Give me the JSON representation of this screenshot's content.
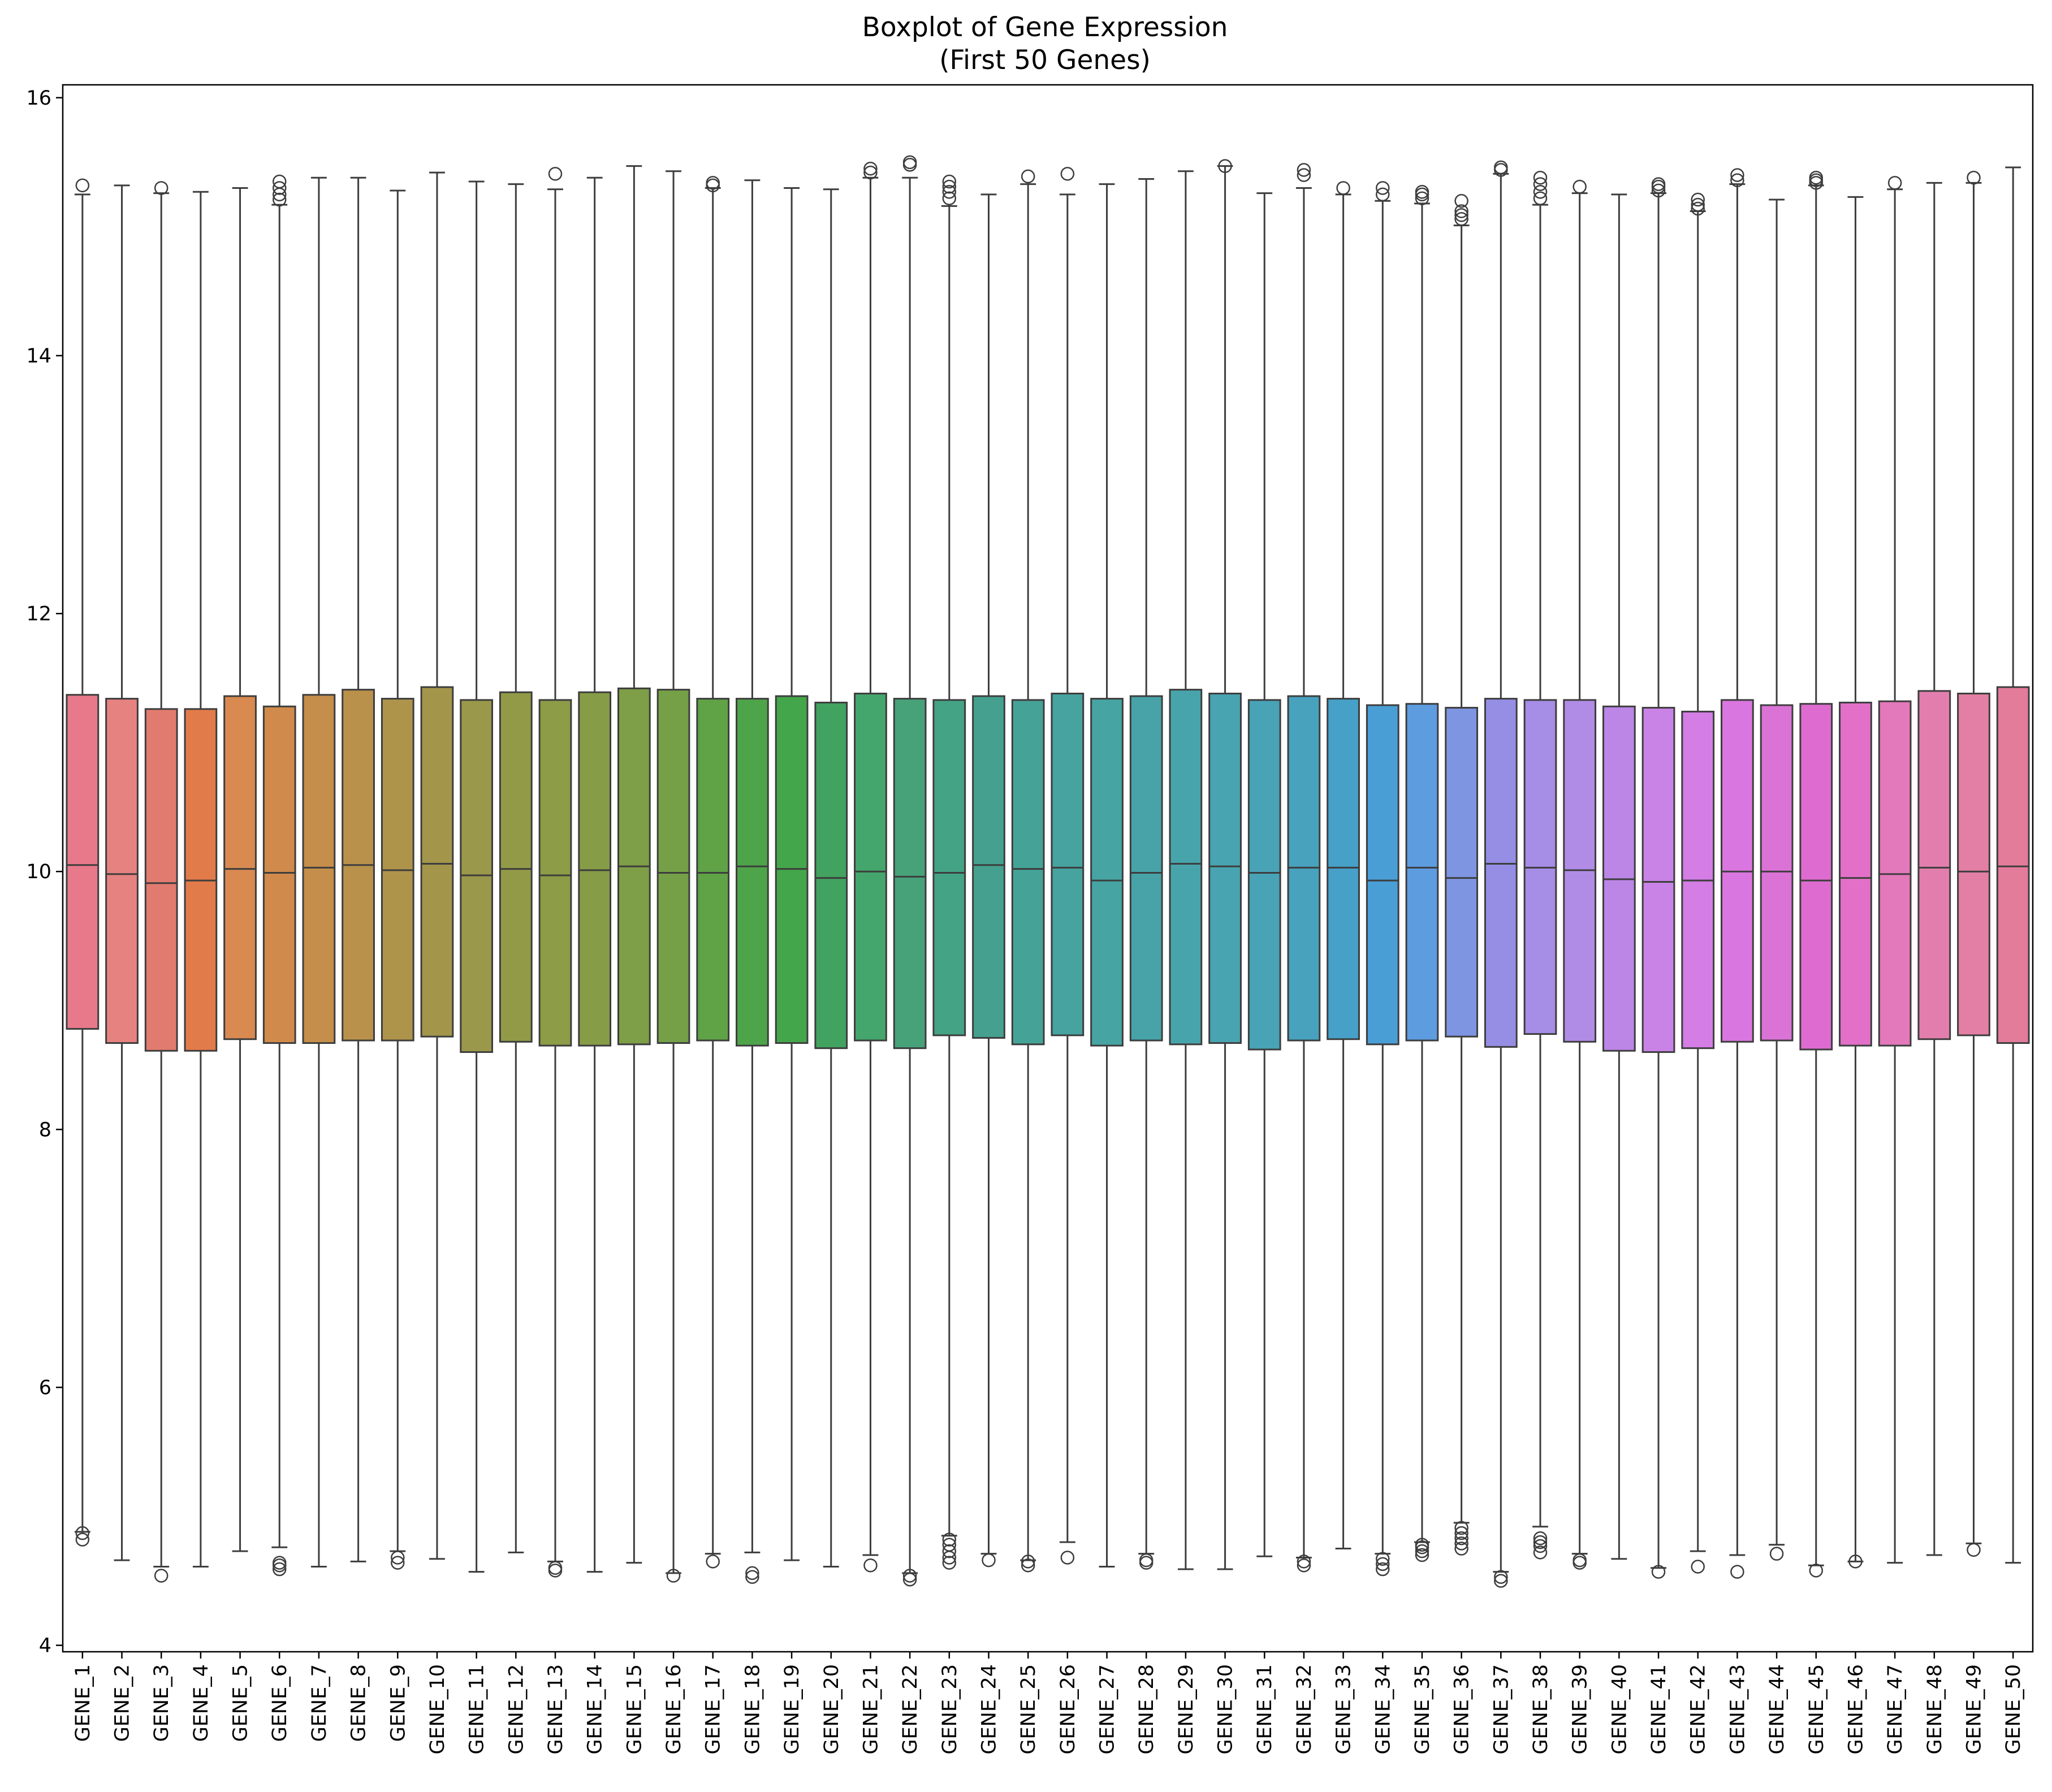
{
  "chart_data": {
    "type": "box",
    "title": "Boxplot of Gene Expression",
    "subtitle": "(First 50 Genes)",
    "xlabel": "",
    "ylabel": "",
    "ylim": [
      3.95,
      16.1
    ],
    "yticks": [
      4,
      6,
      8,
      10,
      12,
      14,
      16
    ],
    "grid": false,
    "legend": "none",
    "box_edge_color": "#3d3d3d",
    "categories": [
      "GENE_1",
      "GENE_2",
      "GENE_3",
      "GENE_4",
      "GENE_5",
      "GENE_6",
      "GENE_7",
      "GENE_8",
      "GENE_9",
      "GENE_10",
      "GENE_11",
      "GENE_12",
      "GENE_13",
      "GENE_14",
      "GENE_15",
      "GENE_16",
      "GENE_17",
      "GENE_18",
      "GENE_19",
      "GENE_20",
      "GENE_21",
      "GENE_22",
      "GENE_23",
      "GENE_24",
      "GENE_25",
      "GENE_26",
      "GENE_27",
      "GENE_28",
      "GENE_29",
      "GENE_30",
      "GENE_31",
      "GENE_32",
      "GENE_33",
      "GENE_34",
      "GENE_35",
      "GENE_36",
      "GENE_37",
      "GENE_38",
      "GENE_39",
      "GENE_40",
      "GENE_41",
      "GENE_42",
      "GENE_43",
      "GENE_44",
      "GENE_45",
      "GENE_46",
      "GENE_47",
      "GENE_48",
      "GENE_49",
      "GENE_50"
    ],
    "colors": [
      "#e8798a",
      "#e68280",
      "#e27b6f",
      "#e27b4a",
      "#d98a50",
      "#cf8a4c",
      "#c58e4b",
      "#b9914b",
      "#ae944b",
      "#a3964b",
      "#9a984a",
      "#929a48",
      "#8c9c47",
      "#869c47",
      "#7e9e47",
      "#75a047",
      "#60a246",
      "#4ea448",
      "#44a64b",
      "#42a25f",
      "#45a66d",
      "#47a27a",
      "#44a384",
      "#45a08f",
      "#45a297",
      "#46a39f",
      "#46a4a3",
      "#47a3a8",
      "#48a4ab",
      "#48a4b0",
      "#48a3b6",
      "#48a2be",
      "#46a0c8",
      "#4a9ed6",
      "#5e9ce0",
      "#7e95e2",
      "#958ee4",
      "#a68de6",
      "#b18ce6",
      "#bb86e6",
      "#c983e6",
      "#d37de5",
      "#da76e0",
      "#db73d6",
      "#de6cd0",
      "#e270c8",
      "#e378bb",
      "#e27eae",
      "#e37fa4",
      "#e37b9b"
    ],
    "series": [
      {
        "q1": 8.78,
        "median": 10.05,
        "q3": 11.37,
        "whisker_low": 4.88,
        "whisker_high": 15.25,
        "outliers": [
          4.82,
          4.87,
          15.32
        ]
      },
      {
        "q1": 8.67,
        "median": 9.98,
        "q3": 11.34,
        "whisker_low": 4.66,
        "whisker_high": 15.32,
        "outliers": []
      },
      {
        "q1": 8.61,
        "median": 9.91,
        "q3": 11.26,
        "whisker_low": 4.61,
        "whisker_high": 15.26,
        "outliers": [
          4.54,
          15.3
        ]
      },
      {
        "q1": 8.61,
        "median": 9.93,
        "q3": 11.26,
        "whisker_low": 4.61,
        "whisker_high": 15.27,
        "outliers": []
      },
      {
        "q1": 8.7,
        "median": 10.02,
        "q3": 11.36,
        "whisker_low": 4.73,
        "whisker_high": 15.3,
        "outliers": []
      },
      {
        "q1": 8.67,
        "median": 9.99,
        "q3": 11.28,
        "whisker_low": 4.76,
        "whisker_high": 15.17,
        "outliers": [
          4.59,
          4.62,
          4.64,
          15.21,
          15.25,
          15.3,
          15.35
        ]
      },
      {
        "q1": 8.67,
        "median": 10.03,
        "q3": 11.37,
        "whisker_low": 4.61,
        "whisker_high": 15.38,
        "outliers": []
      },
      {
        "q1": 8.69,
        "median": 10.05,
        "q3": 11.41,
        "whisker_low": 4.65,
        "whisker_high": 15.38,
        "outliers": []
      },
      {
        "q1": 8.69,
        "median": 10.01,
        "q3": 11.34,
        "whisker_low": 4.73,
        "whisker_high": 15.28,
        "outliers": [
          4.64,
          4.68
        ]
      },
      {
        "q1": 8.72,
        "median": 10.06,
        "q3": 11.43,
        "whisker_low": 4.67,
        "whisker_high": 15.42,
        "outliers": []
      },
      {
        "q1": 8.6,
        "median": 9.97,
        "q3": 11.33,
        "whisker_low": 4.57,
        "whisker_high": 15.35,
        "outliers": []
      },
      {
        "q1": 8.68,
        "median": 10.02,
        "q3": 11.39,
        "whisker_low": 4.72,
        "whisker_high": 15.33,
        "outliers": []
      },
      {
        "q1": 8.65,
        "median": 9.97,
        "q3": 11.33,
        "whisker_low": 4.65,
        "whisker_high": 15.29,
        "outliers": [
          4.58,
          4.6,
          15.41
        ]
      },
      {
        "q1": 8.65,
        "median": 10.01,
        "q3": 11.39,
        "whisker_low": 4.57,
        "whisker_high": 15.38,
        "outliers": []
      },
      {
        "q1": 8.66,
        "median": 10.04,
        "q3": 11.42,
        "whisker_low": 4.64,
        "whisker_high": 15.47,
        "outliers": []
      },
      {
        "q1": 8.67,
        "median": 9.99,
        "q3": 11.41,
        "whisker_low": 4.56,
        "whisker_high": 15.43,
        "outliers": [
          4.54
        ]
      },
      {
        "q1": 8.69,
        "median": 9.99,
        "q3": 11.34,
        "whisker_low": 4.71,
        "whisker_high": 15.3,
        "outliers": [
          4.65,
          15.32,
          15.34
        ]
      },
      {
        "q1": 8.65,
        "median": 10.04,
        "q3": 11.34,
        "whisker_low": 4.72,
        "whisker_high": 15.36,
        "outliers": [
          4.53,
          4.56
        ]
      },
      {
        "q1": 8.67,
        "median": 10.02,
        "q3": 11.36,
        "whisker_low": 4.66,
        "whisker_high": 15.3,
        "outliers": []
      },
      {
        "q1": 8.63,
        "median": 9.95,
        "q3": 11.31,
        "whisker_low": 4.61,
        "whisker_high": 15.29,
        "outliers": []
      },
      {
        "q1": 8.69,
        "median": 10.0,
        "q3": 11.38,
        "whisker_low": 4.7,
        "whisker_high": 15.38,
        "outliers": [
          4.62,
          15.42,
          15.45
        ]
      },
      {
        "q1": 8.63,
        "median": 9.96,
        "q3": 11.34,
        "whisker_low": 4.56,
        "whisker_high": 15.38,
        "outliers": [
          4.51,
          4.54,
          15.48,
          15.5
        ]
      },
      {
        "q1": 8.73,
        "median": 9.99,
        "q3": 11.33,
        "whisker_low": 4.85,
        "whisker_high": 15.16,
        "outliers": [
          4.64,
          4.68,
          4.73,
          4.78,
          4.82,
          15.22,
          15.27,
          15.31,
          15.35
        ]
      },
      {
        "q1": 8.71,
        "median": 10.05,
        "q3": 11.36,
        "whisker_low": 4.71,
        "whisker_high": 15.25,
        "outliers": [
          4.66
        ]
      },
      {
        "q1": 8.66,
        "median": 10.02,
        "q3": 11.33,
        "whisker_low": 4.66,
        "whisker_high": 15.33,
        "outliers": [
          4.62,
          4.65,
          15.39
        ]
      },
      {
        "q1": 8.73,
        "median": 10.03,
        "q3": 11.38,
        "whisker_low": 4.8,
        "whisker_high": 15.25,
        "outliers": [
          4.68,
          15.41
        ]
      },
      {
        "q1": 8.65,
        "median": 9.93,
        "q3": 11.34,
        "whisker_low": 4.61,
        "whisker_high": 15.33,
        "outliers": []
      },
      {
        "q1": 8.69,
        "median": 9.99,
        "q3": 11.36,
        "whisker_low": 4.71,
        "whisker_high": 15.37,
        "outliers": [
          4.64,
          4.66
        ]
      },
      {
        "q1": 8.66,
        "median": 10.06,
        "q3": 11.41,
        "whisker_low": 4.59,
        "whisker_high": 15.43,
        "outliers": []
      },
      {
        "q1": 8.67,
        "median": 10.04,
        "q3": 11.38,
        "whisker_low": 4.59,
        "whisker_high": 15.47,
        "outliers": [
          15.47
        ]
      },
      {
        "q1": 8.62,
        "median": 9.99,
        "q3": 11.33,
        "whisker_low": 4.69,
        "whisker_high": 15.26,
        "outliers": []
      },
      {
        "q1": 8.69,
        "median": 10.03,
        "q3": 11.36,
        "whisker_low": 4.68,
        "whisker_high": 15.3,
        "outliers": [
          4.62,
          4.65,
          15.4,
          15.44
        ]
      },
      {
        "q1": 8.7,
        "median": 10.03,
        "q3": 11.34,
        "whisker_low": 4.75,
        "whisker_high": 15.25,
        "outliers": [
          15.3
        ]
      },
      {
        "q1": 8.66,
        "median": 9.93,
        "q3": 11.29,
        "whisker_low": 4.71,
        "whisker_high": 15.2,
        "outliers": [
          4.59,
          4.63,
          4.67,
          15.25,
          15.3
        ]
      },
      {
        "q1": 8.69,
        "median": 10.03,
        "q3": 11.3,
        "whisker_low": 4.8,
        "whisker_high": 15.18,
        "outliers": [
          4.7,
          4.73,
          4.76,
          4.78,
          15.22,
          15.25,
          15.27
        ]
      },
      {
        "q1": 8.72,
        "median": 9.95,
        "q3": 11.27,
        "whisker_low": 4.95,
        "whisker_high": 15.01,
        "outliers": [
          4.75,
          4.79,
          4.83,
          4.87,
          4.91,
          15.06,
          15.09,
          15.12,
          15.2
        ]
      },
      {
        "q1": 8.64,
        "median": 10.06,
        "q3": 11.34,
        "whisker_low": 4.57,
        "whisker_high": 15.41,
        "outliers": [
          4.5,
          4.53,
          15.44,
          15.46
        ]
      },
      {
        "q1": 8.74,
        "median": 10.03,
        "q3": 11.33,
        "whisker_low": 4.92,
        "whisker_high": 15.17,
        "outliers": [
          4.72,
          4.77,
          4.8,
          4.83,
          15.22,
          15.27,
          15.33,
          15.38
        ]
      },
      {
        "q1": 8.68,
        "median": 10.01,
        "q3": 11.33,
        "whisker_low": 4.71,
        "whisker_high": 15.26,
        "outliers": [
          4.64,
          4.66,
          15.31
        ]
      },
      {
        "q1": 8.61,
        "median": 9.94,
        "q3": 11.28,
        "whisker_low": 4.67,
        "whisker_high": 15.25,
        "outliers": []
      },
      {
        "q1": 8.6,
        "median": 9.92,
        "q3": 11.27,
        "whisker_low": 4.6,
        "whisker_high": 15.26,
        "outliers": [
          4.57,
          15.28,
          15.31,
          15.33
        ]
      },
      {
        "q1": 8.63,
        "median": 9.93,
        "q3": 11.24,
        "whisker_low": 4.73,
        "whisker_high": 15.12,
        "outliers": [
          4.61,
          15.14,
          15.17,
          15.21
        ]
      },
      {
        "q1": 8.68,
        "median": 10.0,
        "q3": 11.33,
        "whisker_low": 4.7,
        "whisker_high": 15.33,
        "outliers": [
          4.57,
          15.36,
          15.4
        ]
      },
      {
        "q1": 8.69,
        "median": 10.0,
        "q3": 11.29,
        "whisker_low": 4.78,
        "whisker_high": 15.21,
        "outliers": [
          4.71
        ]
      },
      {
        "q1": 8.62,
        "median": 9.93,
        "q3": 11.3,
        "whisker_low": 4.62,
        "whisker_high": 15.32,
        "outliers": [
          4.58,
          15.34,
          15.36,
          15.38
        ]
      },
      {
        "q1": 8.65,
        "median": 9.95,
        "q3": 11.31,
        "whisker_low": 4.65,
        "whisker_high": 15.23,
        "outliers": [
          4.65
        ]
      },
      {
        "q1": 8.65,
        "median": 9.98,
        "q3": 11.32,
        "whisker_low": 4.64,
        "whisker_high": 15.29,
        "outliers": [
          15.34
        ]
      },
      {
        "q1": 8.7,
        "median": 10.03,
        "q3": 11.4,
        "whisker_low": 4.7,
        "whisker_high": 15.34,
        "outliers": []
      },
      {
        "q1": 8.73,
        "median": 10.0,
        "q3": 11.38,
        "whisker_low": 4.79,
        "whisker_high": 15.34,
        "outliers": [
          4.74,
          15.38
        ]
      },
      {
        "q1": 8.67,
        "median": 10.04,
        "q3": 11.43,
        "whisker_low": 4.64,
        "whisker_high": 15.46,
        "outliers": []
      }
    ]
  }
}
